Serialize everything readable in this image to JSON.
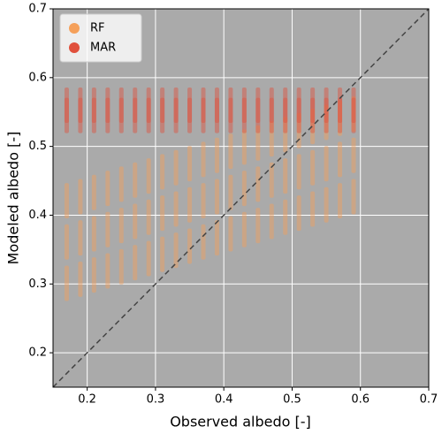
{
  "chart_data": {
    "type": "scatter",
    "xlabel": "Observed albedo [-]",
    "ylabel": "Modeled albedo [-]",
    "xlim": [
      0.15,
      0.7
    ],
    "ylim": [
      0.15,
      0.7
    ],
    "xticks": [
      0.2,
      0.3,
      0.4,
      0.5,
      0.6,
      0.7
    ],
    "yticks": [
      0.2,
      0.3,
      0.4,
      0.5,
      0.6,
      0.7
    ],
    "grid": true,
    "legend": "upper left",
    "series": [
      {
        "name": "RF",
        "color": "#f5a05a",
        "x": [
          0.17,
          0.17,
          0.17,
          0.19,
          0.19,
          0.19,
          0.21,
          0.21,
          0.21,
          0.23,
          0.23,
          0.23,
          0.25,
          0.25,
          0.25,
          0.27,
          0.27,
          0.27,
          0.29,
          0.29,
          0.29,
          0.31,
          0.31,
          0.31,
          0.33,
          0.33,
          0.33,
          0.35,
          0.35,
          0.35,
          0.37,
          0.37,
          0.37,
          0.39,
          0.39,
          0.39,
          0.41,
          0.41,
          0.41,
          0.43,
          0.43,
          0.43,
          0.45,
          0.45,
          0.45,
          0.47,
          0.47,
          0.47,
          0.49,
          0.49,
          0.49,
          0.51,
          0.51,
          0.51,
          0.53,
          0.53,
          0.53,
          0.55,
          0.55,
          0.55,
          0.57,
          0.57,
          0.57,
          0.59,
          0.59,
          0.59
        ],
        "y": [
          0.301,
          0.361,
          0.421,
          0.307,
          0.367,
          0.427,
          0.313,
          0.373,
          0.433,
          0.319,
          0.379,
          0.439,
          0.325,
          0.385,
          0.445,
          0.331,
          0.391,
          0.451,
          0.337,
          0.397,
          0.457,
          0.343,
          0.403,
          0.463,
          0.349,
          0.409,
          0.469,
          0.355,
          0.415,
          0.475,
          0.361,
          0.421,
          0.481,
          0.367,
          0.427,
          0.487,
          0.373,
          0.433,
          0.493,
          0.379,
          0.439,
          0.499,
          0.385,
          0.445,
          0.505,
          0.391,
          0.451,
          0.511,
          0.397,
          0.457,
          0.517,
          0.403,
          0.463,
          0.523,
          0.409,
          0.469,
          0.529,
          0.415,
          0.475,
          0.535,
          0.421,
          0.481,
          0.541,
          0.427,
          0.487,
          0.547
        ]
      },
      {
        "name": "MAR",
        "color": "#e0503c",
        "x": [
          0.17,
          0.17,
          0.19,
          0.19,
          0.21,
          0.21,
          0.23,
          0.23,
          0.25,
          0.25,
          0.27,
          0.27,
          0.29,
          0.29,
          0.31,
          0.31,
          0.33,
          0.33,
          0.35,
          0.35,
          0.37,
          0.37,
          0.39,
          0.39,
          0.41,
          0.41,
          0.43,
          0.43,
          0.45,
          0.45,
          0.47,
          0.47,
          0.49,
          0.49,
          0.51,
          0.51,
          0.53,
          0.53,
          0.55,
          0.55,
          0.57,
          0.57,
          0.59,
          0.59
        ],
        "y": [
          0.545,
          0.56,
          0.545,
          0.56,
          0.545,
          0.56,
          0.545,
          0.56,
          0.545,
          0.56,
          0.545,
          0.56,
          0.545,
          0.56,
          0.545,
          0.56,
          0.545,
          0.56,
          0.545,
          0.56,
          0.545,
          0.56,
          0.545,
          0.56,
          0.545,
          0.56,
          0.545,
          0.56,
          0.545,
          0.56,
          0.545,
          0.56,
          0.545,
          0.56,
          0.545,
          0.56,
          0.545,
          0.56,
          0.545,
          0.56,
          0.545,
          0.56,
          0.545,
          0.56
        ]
      }
    ]
  }
}
